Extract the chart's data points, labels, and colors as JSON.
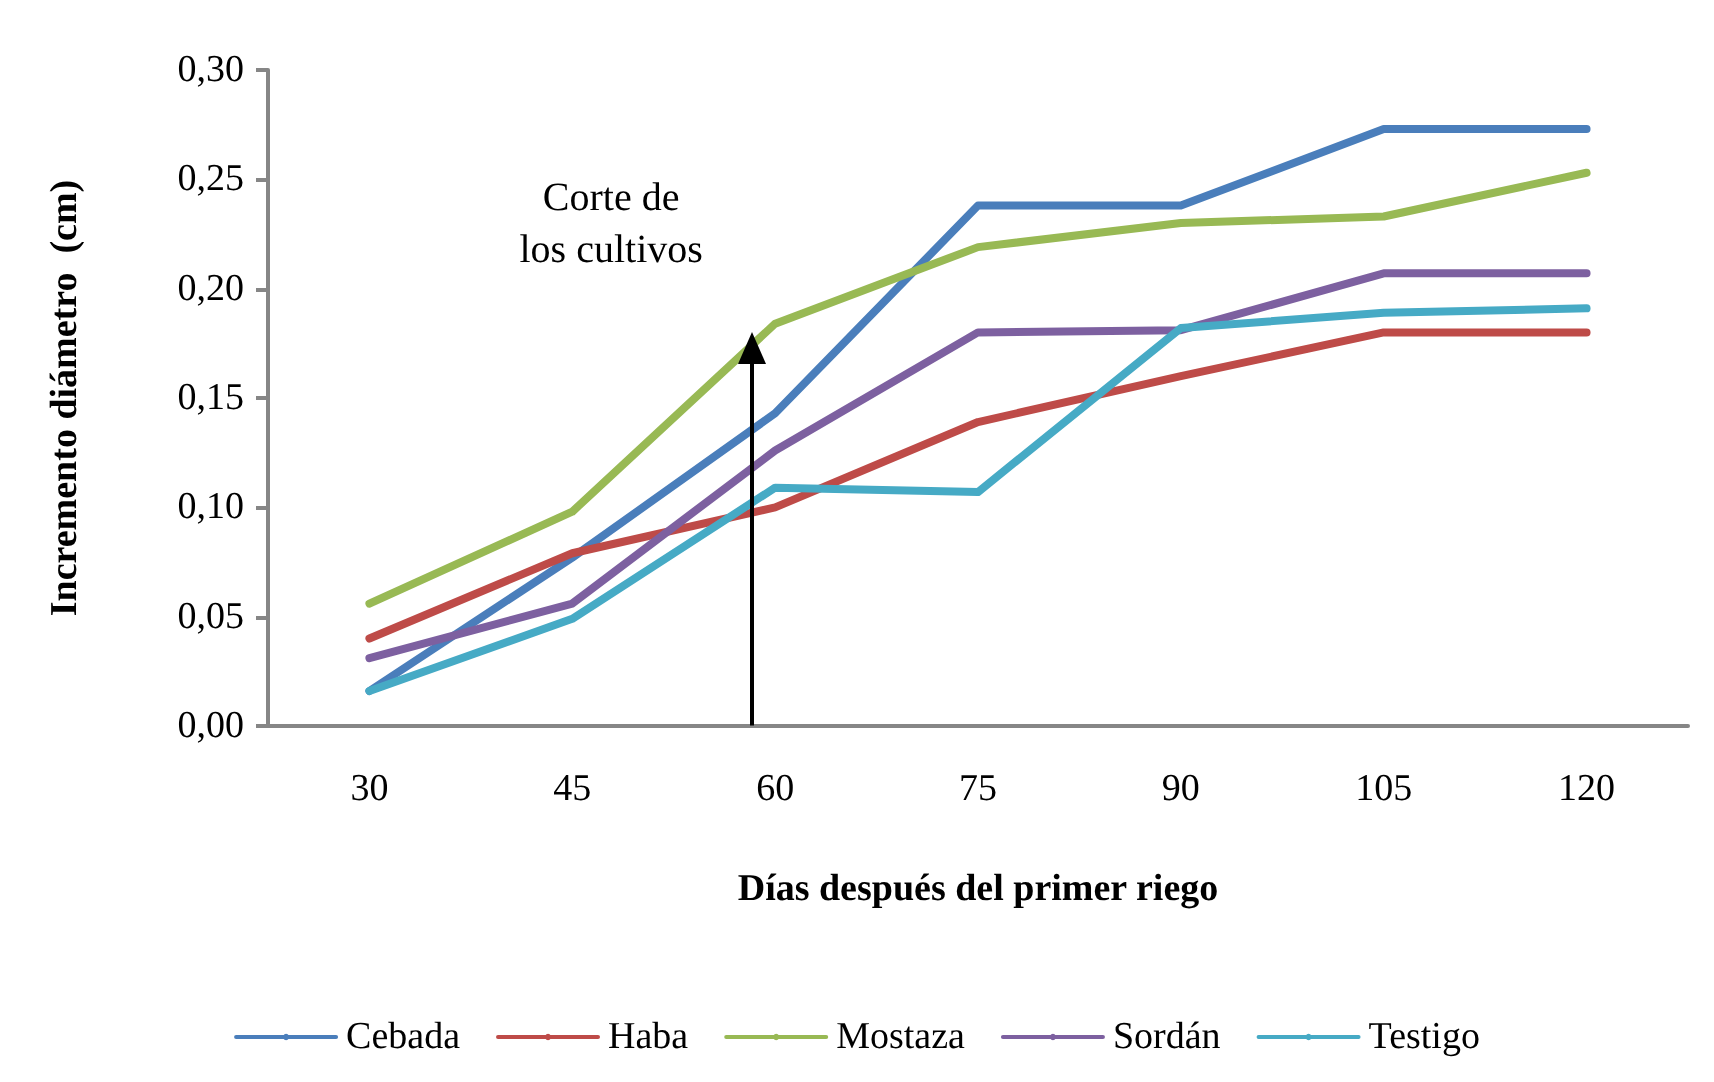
{
  "chart_data": {
    "type": "line",
    "xlabel": "Días después del primer riego",
    "ylabel": "Incremento diámetro  (cm)",
    "categories": [
      "30",
      "45",
      "60",
      "75",
      "90",
      "105",
      "120"
    ],
    "ylim": [
      0,
      0.3
    ],
    "yticks": [
      {
        "value": 0,
        "label": "0,00"
      },
      {
        "value": 0.05,
        "label": "0,05"
      },
      {
        "value": 0.1,
        "label": "0,10"
      },
      {
        "value": 0.15,
        "label": "0,15"
      },
      {
        "value": 0.2,
        "label": "0,20"
      },
      {
        "value": 0.25,
        "label": "0,25"
      },
      {
        "value": 0.3,
        "label": "0,30"
      }
    ],
    "series": [
      {
        "name": "Cebada",
        "color": "#4a7ebb",
        "values": [
          0.016,
          0.077,
          0.143,
          0.238,
          0.238,
          0.273,
          0.273
        ]
      },
      {
        "name": "Haba",
        "color": "#be4b48",
        "values": [
          0.04,
          0.079,
          0.1,
          0.139,
          0.16,
          0.18,
          0.18
        ]
      },
      {
        "name": "Mostaza",
        "color": "#98b954",
        "values": [
          0.056,
          0.098,
          0.184,
          0.219,
          0.23,
          0.233,
          0.253
        ]
      },
      {
        "name": "Sordán",
        "color": "#7d60a0",
        "values": [
          0.031,
          0.056,
          0.126,
          0.18,
          0.181,
          0.207,
          0.207
        ]
      },
      {
        "name": "Testigo",
        "color": "#46aac5",
        "values": [
          0.016,
          0.049,
          0.109,
          0.107,
          0.182,
          0.189,
          0.191
        ]
      }
    ],
    "annotations": [
      {
        "text": "Corte de\nlos cultivos",
        "x": "60",
        "y": 0.18
      }
    ],
    "grid": false,
    "legend": "bottom",
    "marker": "none",
    "line_style": "solid"
  }
}
